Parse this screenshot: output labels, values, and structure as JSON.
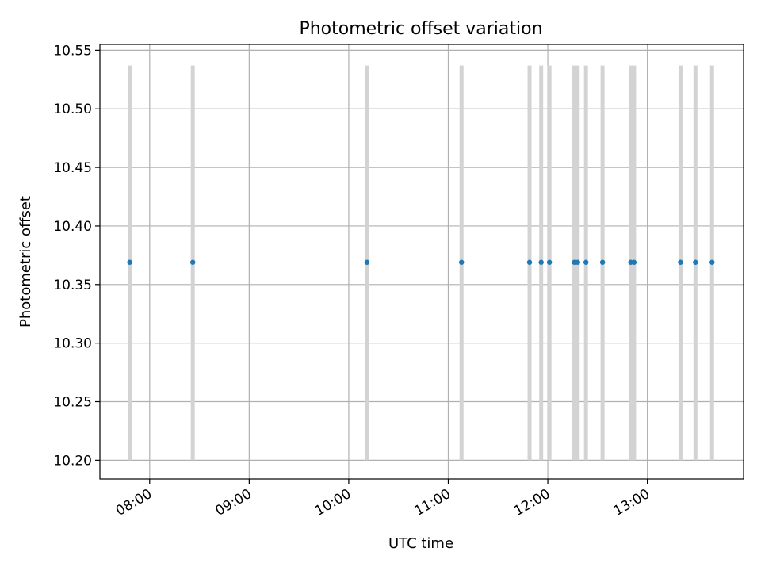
{
  "chart_data": {
    "type": "scatter",
    "title": "Photometric offset variation",
    "xlabel": "UTC time",
    "ylabel": "Photometric offset",
    "x_axis_type": "time",
    "xlim": [
      "07:30",
      "13:58"
    ],
    "ylim": [
      10.184,
      10.555
    ],
    "grid": true,
    "x_ticks": [
      "08:00",
      "09:00",
      "10:00",
      "11:00",
      "12:00",
      "13:00"
    ],
    "x_tick_rotation": 30,
    "y_ticks": [
      10.2,
      10.25,
      10.3,
      10.35,
      10.4,
      10.45,
      10.5,
      10.55
    ],
    "y_tick_labels": [
      "10.20",
      "10.25",
      "10.30",
      "10.35",
      "10.40",
      "10.45",
      "10.50",
      "10.55"
    ],
    "points": [
      {
        "x": "07:48",
        "y": 10.369,
        "yerr_low": 10.2,
        "yerr_high": 10.537
      },
      {
        "x": "08:26",
        "y": 10.369,
        "yerr_low": 10.2,
        "yerr_high": 10.537
      },
      {
        "x": "10:11",
        "y": 10.369,
        "yerr_low": 10.2,
        "yerr_high": 10.537
      },
      {
        "x": "11:08",
        "y": 10.369,
        "yerr_low": 10.2,
        "yerr_high": 10.537
      },
      {
        "x": "11:49",
        "y": 10.369,
        "yerr_low": 10.2,
        "yerr_high": 10.537
      },
      {
        "x": "11:56",
        "y": 10.369,
        "yerr_low": 10.2,
        "yerr_high": 10.537
      },
      {
        "x": "12:01",
        "y": 10.369,
        "yerr_low": 10.2,
        "yerr_high": 10.537
      },
      {
        "x": "12:16",
        "y": 10.369,
        "yerr_low": 10.2,
        "yerr_high": 10.537
      },
      {
        "x": "12:18",
        "y": 10.369,
        "yerr_low": 10.2,
        "yerr_high": 10.537
      },
      {
        "x": "12:23",
        "y": 10.369,
        "yerr_low": 10.2,
        "yerr_high": 10.537
      },
      {
        "x": "12:33",
        "y": 10.369,
        "yerr_low": 10.2,
        "yerr_high": 10.537
      },
      {
        "x": "12:50",
        "y": 10.369,
        "yerr_low": 10.2,
        "yerr_high": 10.537
      },
      {
        "x": "12:52",
        "y": 10.369,
        "yerr_low": 10.2,
        "yerr_high": 10.537
      },
      {
        "x": "13:20",
        "y": 10.369,
        "yerr_low": 10.2,
        "yerr_high": 10.537
      },
      {
        "x": "13:29",
        "y": 10.369,
        "yerr_low": 10.2,
        "yerr_high": 10.537
      },
      {
        "x": "13:39",
        "y": 10.369,
        "yerr_low": 10.2,
        "yerr_high": 10.537
      }
    ],
    "colors": {
      "point": "#1f77b4",
      "errorbar": "#d3d3d3",
      "grid": "#b0b0b0"
    }
  }
}
